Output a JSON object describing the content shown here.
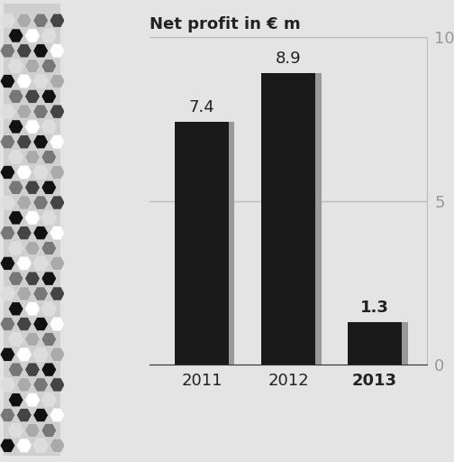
{
  "chart_data": {
    "type": "bar",
    "title": "Net profit in € m",
    "categories": [
      "2011",
      "2012",
      "2013"
    ],
    "values": [
      7.4,
      8.9,
      1.3
    ],
    "color": "#1a1a1a",
    "ylim": [
      0,
      10
    ],
    "yticks": [
      0,
      5,
      10
    ],
    "grid": true,
    "data_labels": true
  }
}
